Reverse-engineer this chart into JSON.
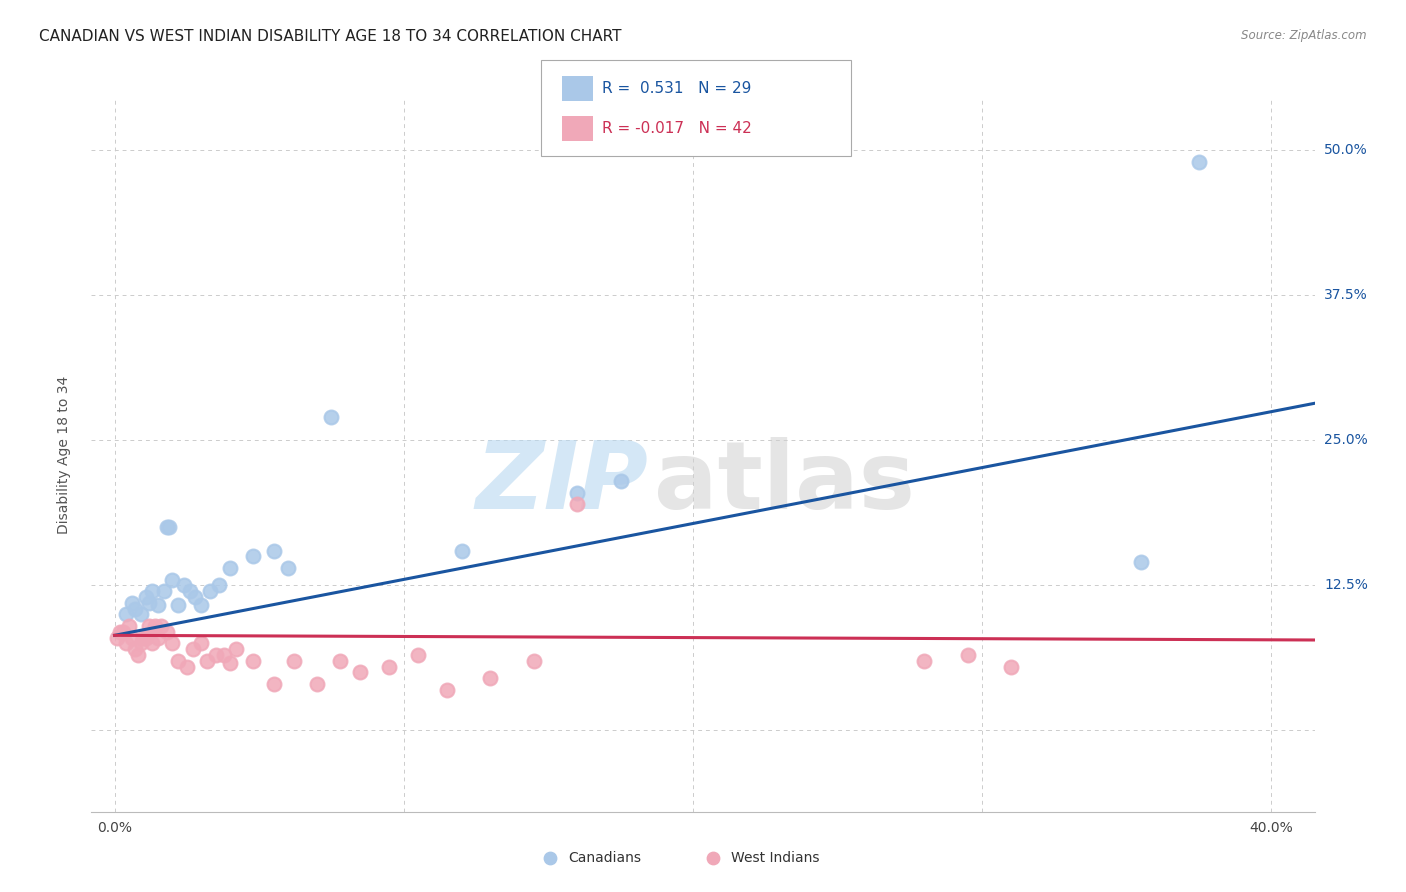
{
  "title": "CANADIAN VS WEST INDIAN DISABILITY AGE 18 TO 34 CORRELATION CHART",
  "source": "Source: ZipAtlas.com",
  "ylabel": "Disability Age 18 to 34",
  "x_ticks": [
    0.0,
    0.1,
    0.2,
    0.3,
    0.4
  ],
  "y_ticks": [
    0.0,
    0.125,
    0.25,
    0.375,
    0.5
  ],
  "y_tick_labels": [
    "",
    "12.5%",
    "25.0%",
    "37.5%",
    "50.0%"
  ],
  "xlim": [
    -0.008,
    0.415
  ],
  "ylim": [
    -0.07,
    0.545
  ],
  "canadian_R": 0.531,
  "canadian_N": 29,
  "westindian_R": -0.017,
  "westindian_N": 42,
  "canadian_color": "#aac8e8",
  "canadian_line_color": "#1a55a0",
  "westindian_color": "#f0a8b8",
  "westindian_line_color": "#cc3055",
  "background_color": "#ffffff",
  "canadian_x": [
    0.004,
    0.006,
    0.007,
    0.009,
    0.011,
    0.012,
    0.013,
    0.015,
    0.017,
    0.018,
    0.019,
    0.02,
    0.022,
    0.024,
    0.026,
    0.028,
    0.03,
    0.033,
    0.036,
    0.04,
    0.048,
    0.055,
    0.06,
    0.075,
    0.12,
    0.16,
    0.175,
    0.355,
    0.375
  ],
  "canadian_y": [
    0.1,
    0.11,
    0.105,
    0.1,
    0.115,
    0.11,
    0.12,
    0.108,
    0.12,
    0.175,
    0.175,
    0.13,
    0.108,
    0.125,
    0.12,
    0.115,
    0.108,
    0.12,
    0.125,
    0.14,
    0.15,
    0.155,
    0.14,
    0.27,
    0.155,
    0.205,
    0.215,
    0.145,
    0.49
  ],
  "westindian_x": [
    0.001,
    0.002,
    0.003,
    0.004,
    0.005,
    0.006,
    0.007,
    0.008,
    0.009,
    0.01,
    0.011,
    0.012,
    0.013,
    0.014,
    0.015,
    0.016,
    0.018,
    0.02,
    0.022,
    0.025,
    0.027,
    0.03,
    0.032,
    0.035,
    0.038,
    0.04,
    0.042,
    0.048,
    0.055,
    0.062,
    0.07,
    0.078,
    0.085,
    0.095,
    0.105,
    0.115,
    0.13,
    0.145,
    0.16,
    0.28,
    0.295,
    0.31
  ],
  "westindian_y": [
    0.08,
    0.085,
    0.085,
    0.075,
    0.09,
    0.08,
    0.07,
    0.065,
    0.075,
    0.08,
    0.08,
    0.09,
    0.075,
    0.09,
    0.08,
    0.09,
    0.085,
    0.075,
    0.06,
    0.055,
    0.07,
    0.075,
    0.06,
    0.065,
    0.065,
    0.058,
    0.07,
    0.06,
    0.04,
    0.06,
    0.04,
    0.06,
    0.05,
    0.055,
    0.065,
    0.035,
    0.045,
    0.06,
    0.195,
    0.06,
    0.065,
    0.055
  ],
  "grid_color": "#cccccc"
}
